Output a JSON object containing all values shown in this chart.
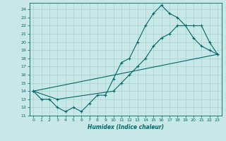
{
  "xlabel": "Humidex (Indice chaleur)",
  "bg_color": "#c8e8e8",
  "grid_color": "#a8d0d0",
  "line_color": "#006868",
  "xlim": [
    -0.5,
    23.5
  ],
  "ylim": [
    11,
    24.8
  ],
  "yticks": [
    11,
    12,
    13,
    14,
    15,
    16,
    17,
    18,
    19,
    20,
    21,
    22,
    23,
    24
  ],
  "xticks": [
    0,
    1,
    2,
    3,
    4,
    5,
    6,
    7,
    8,
    9,
    10,
    11,
    12,
    13,
    14,
    15,
    16,
    17,
    18,
    19,
    20,
    21,
    22,
    23
  ],
  "line1_x": [
    0,
    1,
    2,
    3,
    4,
    5,
    6,
    7,
    8,
    9,
    10,
    11,
    12,
    13,
    14,
    15,
    16,
    17,
    18,
    19,
    20,
    21,
    22,
    23
  ],
  "line1_y": [
    14,
    13,
    13,
    12,
    11.5,
    12,
    11.5,
    12.5,
    13.5,
    13.5,
    15.5,
    17.5,
    18,
    20,
    22,
    23.5,
    24.5,
    23.5,
    23,
    22,
    20.5,
    19.5,
    19,
    18.5
  ],
  "line2_x": [
    0,
    3,
    10,
    11,
    12,
    13,
    14,
    15,
    16,
    17,
    18,
    19,
    20,
    21,
    22,
    23
  ],
  "line2_y": [
    14,
    13,
    14,
    15,
    16,
    17,
    18,
    19.5,
    20.5,
    21,
    22,
    22,
    22,
    22,
    20,
    18.5
  ],
  "line3_x": [
    0,
    23
  ],
  "line3_y": [
    14,
    18.5
  ]
}
